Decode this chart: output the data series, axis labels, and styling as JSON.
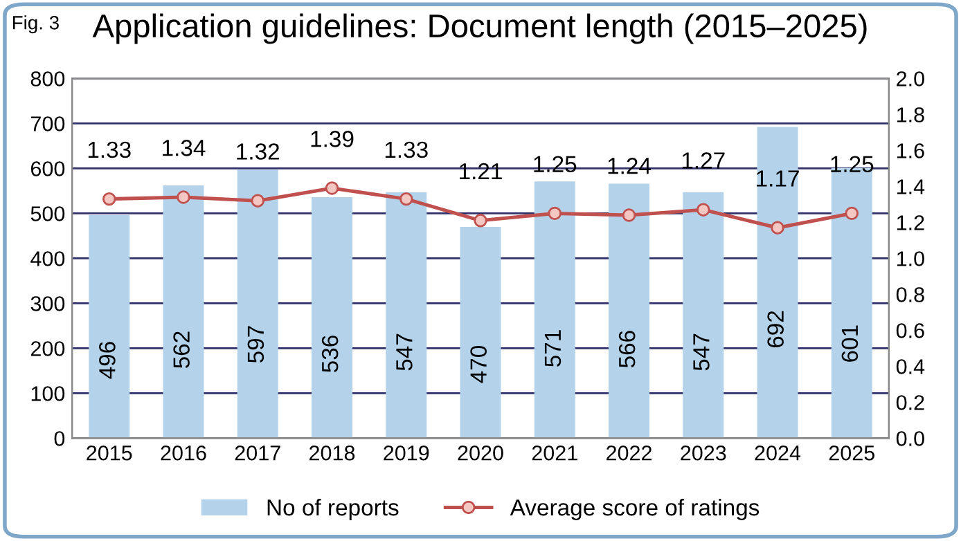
{
  "chart_data": {
    "type": "bar",
    "title": "Application guidelines: Document length (2015–2025)",
    "annotations": [
      "Fig. 3"
    ],
    "categories": [
      "2015",
      "2016",
      "2017",
      "2018",
      "2019",
      "2020",
      "2021",
      "2022",
      "2023",
      "2024",
      "2025"
    ],
    "series": [
      {
        "name": "No of reports",
        "color": "#b4d3ea",
        "values": [
          496,
          562,
          597,
          536,
          547,
          470,
          571,
          566,
          547,
          692,
          601
        ]
      },
      {
        "name": "Average score of ratings",
        "type": "line",
        "axis": "y2",
        "color": "#c0504d",
        "marker": "circle",
        "values": [
          1.33,
          1.34,
          1.32,
          1.39,
          1.33,
          1.21,
          1.25,
          1.24,
          1.27,
          1.17,
          1.25
        ]
      }
    ],
    "data_labels": true,
    "ylim": [
      0,
      800
    ],
    "yticks": [
      0,
      100,
      200,
      300,
      400,
      500,
      600,
      700,
      800
    ],
    "y2lim": [
      0,
      2
    ],
    "y2ticks": [
      {
        "value": 0,
        "label": "0.0"
      },
      {
        "value": 0.2,
        "label": "0.2"
      },
      {
        "value": 0.4,
        "label": "0.4"
      },
      {
        "value": 0.6,
        "label": "0.6"
      },
      {
        "value": 0.8,
        "label": "0.8"
      },
      {
        "value": 1,
        "label": "1.0"
      },
      {
        "value": 1.2,
        "label": "1.2"
      },
      {
        "value": 1.4,
        "label": "1.4"
      },
      {
        "value": 1.6,
        "label": "1.6"
      },
      {
        "value": 1.8,
        "label": "1.8"
      },
      {
        "value": 2,
        "label": "2.0"
      }
    ],
    "grid": "y",
    "legend": "bottom"
  }
}
